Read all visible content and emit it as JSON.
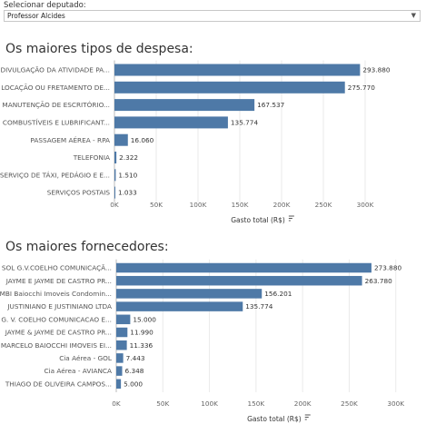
{
  "selector": {
    "label": "Selecionar deputado:",
    "value": "Professor Alcides",
    "arrow_icon": "chevron-down-icon"
  },
  "bar_color": "#4e79a7",
  "chart_data": [
    {
      "type": "bar",
      "orientation": "horizontal",
      "title": "Os maiores tipos de despesa:",
      "xlabel": "Gasto total (R$)",
      "xlim": [
        0,
        350000
      ],
      "xticks": [
        0,
        50000,
        100000,
        150000,
        200000,
        250000,
        300000
      ],
      "xtick_labels": [
        "0K",
        "50K",
        "100K",
        "150K",
        "200K",
        "250K",
        "300K"
      ],
      "categories": [
        "DIVULGAÇÃO DA ATIVIDADE PA...",
        "LOCAÇÃO OU FRETAMENTO DE...",
        "MANUTENÇÃO DE ESCRITÓRIO...",
        "COMBUSTÍVEIS E LUBRIFICANT...",
        "PASSAGEM AÉREA - RPA",
        "TELEFONIA",
        "SERVIÇO DE TÁXI, PEDÁGIO E E...",
        "SERVIÇOS POSTAIS"
      ],
      "values": [
        293880,
        275770,
        167537,
        135774,
        16060,
        2322,
        1510,
        1033
      ],
      "value_labels": [
        "293.880",
        "275.770",
        "167.537",
        "135.774",
        "16.060",
        "2.322",
        "1.510",
        "1.033"
      ]
    },
    {
      "type": "bar",
      "orientation": "horizontal",
      "title": "Os maiores fornecedores:",
      "xlabel": "Gasto total (R$)",
      "xlim": [
        0,
        310000
      ],
      "xticks": [
        0,
        50000,
        100000,
        150000,
        200000,
        250000,
        300000
      ],
      "xtick_labels": [
        "0K",
        "50K",
        "100K",
        "150K",
        "200K",
        "250K",
        "300K"
      ],
      "categories": [
        "SOL G.V.COELHO COMUNICAÇÃ...",
        "JAYME E JAYME DE CASTRO PR...",
        "MBI Baiocchi Imoveis Condomin...",
        "JUSTINIANO E JUSTINIANO LTDA",
        "G. V. COELHO COMUNICACAO E...",
        "JAYME & JAYME DE CASTRO PR...",
        "MARCELO BAIOCCHI IMOVEIS EI...",
        "Cia Aérea - GOL",
        "Cia Aérea - AVIANCA",
        "THIAGO DE OLIVEIRA CAMPOS..."
      ],
      "values": [
        273880,
        263780,
        156201,
        135774,
        15000,
        11990,
        11336,
        7443,
        6348,
        5000
      ],
      "value_labels": [
        "273.880",
        "263.780",
        "156.201",
        "135.774",
        "15.000",
        "11.990",
        "11.336",
        "7.443",
        "6.348",
        "5.000"
      ]
    }
  ]
}
